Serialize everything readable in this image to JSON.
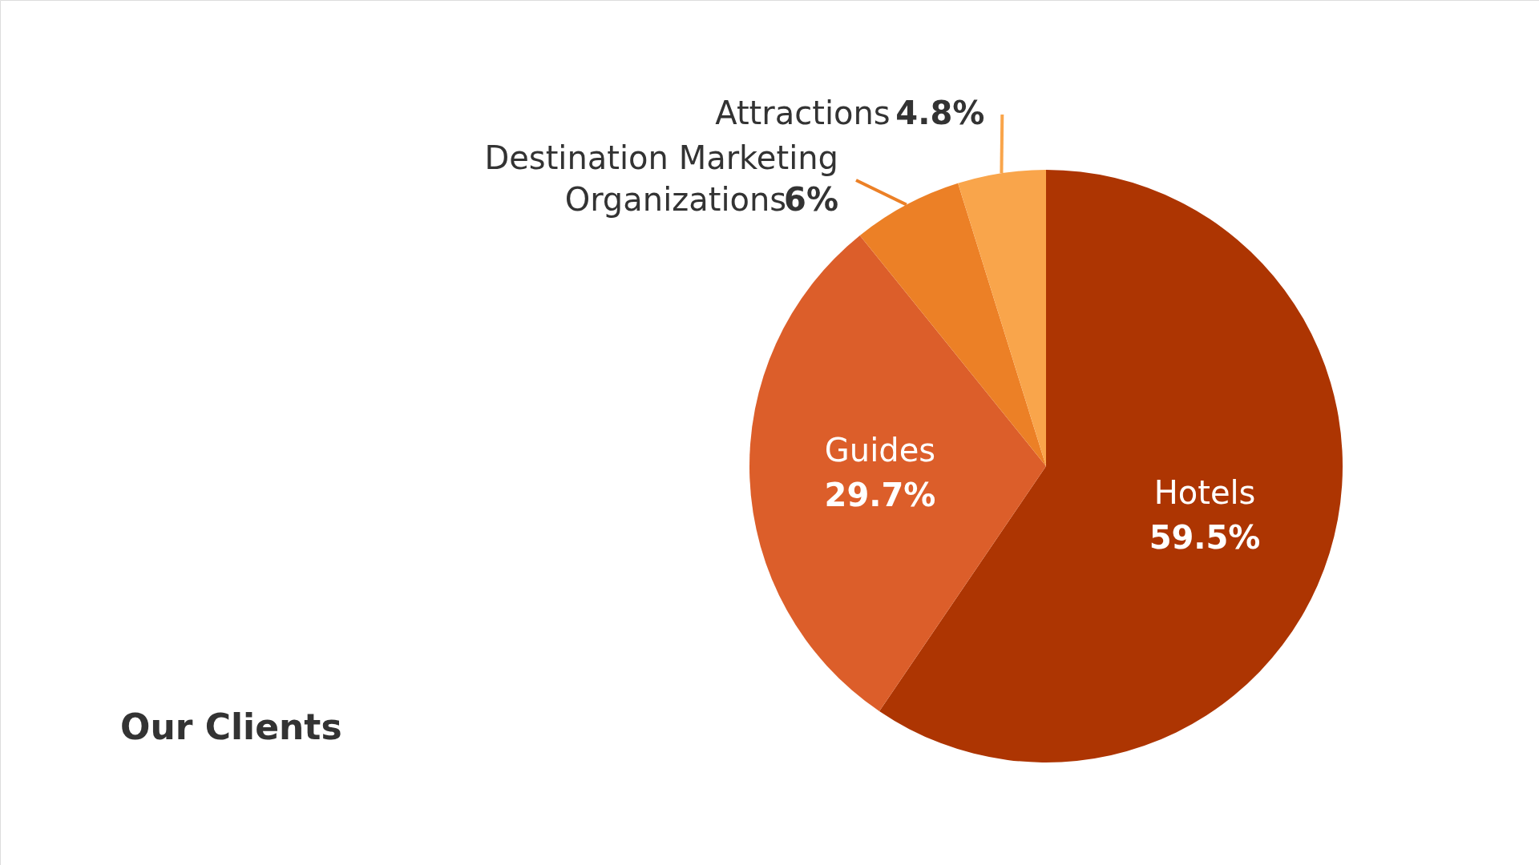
{
  "chart_data": {
    "type": "pie",
    "title": "Our Clients",
    "categories": [
      "Hotels",
      "Guides",
      "Destination Marketing Organizations",
      "Attractions"
    ],
    "values": [
      59.5,
      29.7,
      6,
      4.8
    ],
    "colors": [
      "#ad3502",
      "#dc5e2a",
      "#ec8026",
      "#f9a54b"
    ],
    "value_labels": [
      "59.5%",
      "29.7%",
      "6%",
      "4.8%"
    ]
  }
}
